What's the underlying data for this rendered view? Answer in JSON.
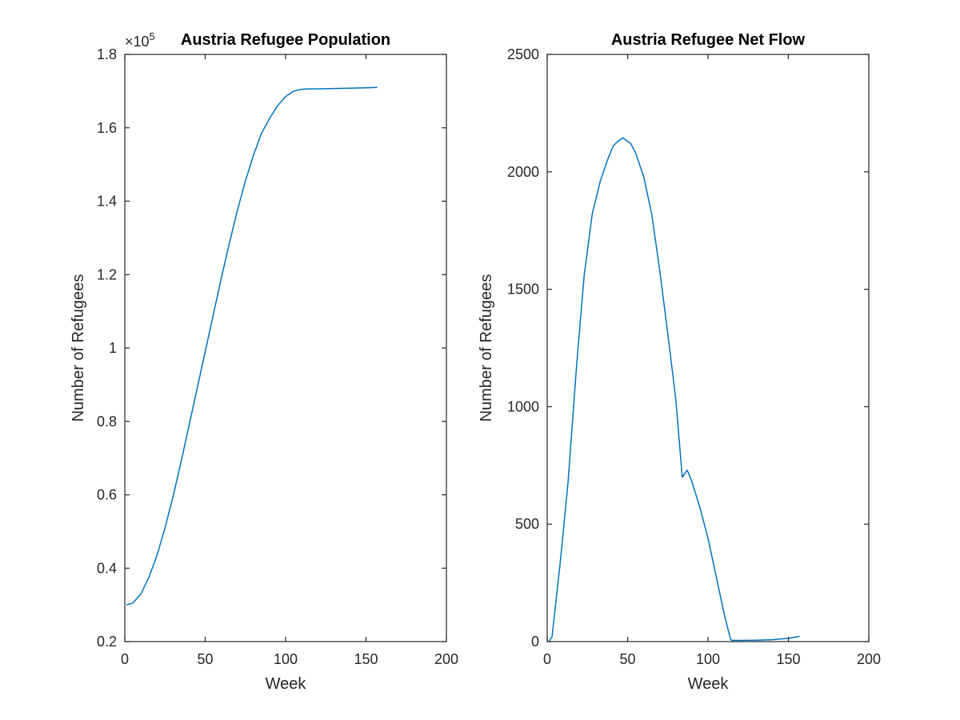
{
  "chart_data": [
    {
      "type": "line",
      "title": "Austria Refugee Population",
      "xlabel": "Week",
      "ylabel": "Number of Refugees",
      "xlim": [
        0,
        200
      ],
      "ylim": [
        20000,
        180000
      ],
      "xticks": [
        0,
        50,
        100,
        150,
        200
      ],
      "xtick_labels": [
        "0",
        "50",
        "100",
        "150",
        "200"
      ],
      "yticks": [
        20000,
        40000,
        60000,
        80000,
        100000,
        120000,
        140000,
        160000,
        180000
      ],
      "ytick_labels": [
        "0.2",
        "0.4",
        "0.6",
        "0.8",
        "1",
        "1.2",
        "1.4",
        "1.6",
        "1.8"
      ],
      "exponent_label": "×10",
      "exponent_power": "5",
      "grid": false,
      "color": "#0072BD",
      "series": [
        {
          "x": [
            1,
            5,
            10,
            15,
            20,
            25,
            30,
            35,
            40,
            45,
            50,
            55,
            60,
            65,
            70,
            75,
            80,
            85,
            90,
            95,
            100,
            105,
            110,
            114,
            120,
            130,
            140,
            150,
            157
          ],
          "y": [
            30000,
            30500,
            33000,
            37500,
            43500,
            51000,
            59500,
            69000,
            79000,
            89000,
            99000,
            109000,
            119000,
            128500,
            137500,
            145500,
            152500,
            158500,
            162500,
            166000,
            168500,
            170000,
            170500,
            170600,
            170600,
            170700,
            170800,
            170900,
            171000
          ]
        }
      ]
    },
    {
      "type": "line",
      "title": "Austria Refugee Net Flow",
      "xlabel": "Week",
      "ylabel": "Number of Refugees",
      "xlim": [
        0,
        200
      ],
      "ylim": [
        0,
        2500
      ],
      "xticks": [
        0,
        50,
        100,
        150,
        200
      ],
      "xtick_labels": [
        "0",
        "50",
        "100",
        "150",
        "200"
      ],
      "yticks": [
        0,
        500,
        1000,
        1500,
        2000,
        2500
      ],
      "ytick_labels": [
        "0",
        "500",
        "1000",
        "1500",
        "2000",
        "2500"
      ],
      "grid": false,
      "color": "#0072BD",
      "series": [
        {
          "x": [
            1,
            3,
            8,
            13,
            18,
            23,
            28,
            33,
            38,
            41,
            44,
            47,
            50,
            52,
            55,
            60,
            65,
            70,
            75,
            80,
            84,
            87,
            88,
            90,
            95,
            100,
            105,
            110,
            114,
            115,
            120,
            130,
            140,
            150,
            157
          ],
          "y": [
            0,
            20,
            330,
            680,
            1150,
            1560,
            1820,
            1960,
            2060,
            2110,
            2130,
            2145,
            2130,
            2120,
            2080,
            1980,
            1820,
            1580,
            1310,
            1030,
            700,
            730,
            715,
            680,
            570,
            440,
            280,
            120,
            10,
            5,
            5,
            6,
            8,
            14,
            22
          ]
        }
      ]
    }
  ]
}
